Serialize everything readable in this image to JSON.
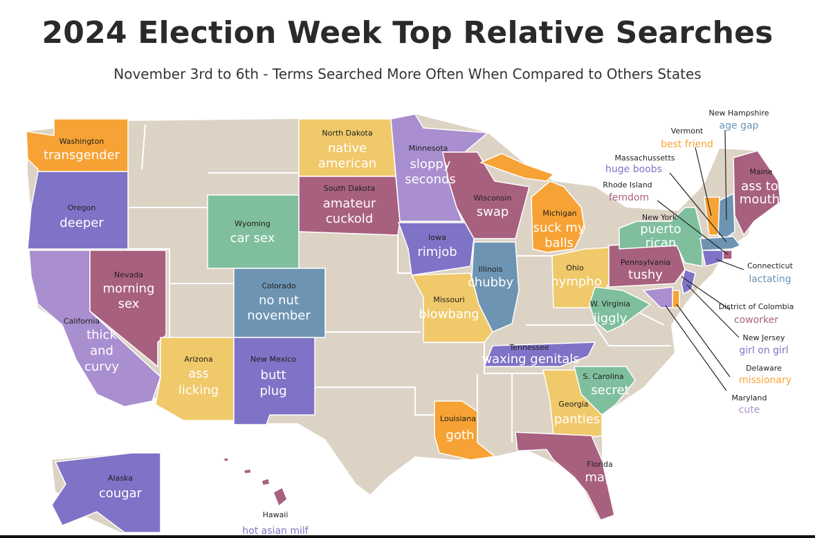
{
  "title": "2024 Election Week Top Relative Searches",
  "subtitle": "November 3rd to 6th - Terms Searched More Often When Compared to Others States",
  "colors": {
    "base": "#ddd3c5",
    "orange": "#f7a234",
    "purple": "#7e73c6",
    "lavender": "#a98ed0",
    "mauve": "#a8607f",
    "green": "#7fbf9e",
    "yellow": "#f0c96a",
    "blue": "#6d94b3"
  },
  "states": {
    "washington": {
      "name": "Washington",
      "term": "transgender"
    },
    "oregon": {
      "name": "Oregon",
      "term": "deeper"
    },
    "california": {
      "name": "California",
      "term": [
        "thick",
        "and",
        "curvy"
      ]
    },
    "nevada": {
      "name": "Nevada",
      "term": [
        "morning",
        "sex"
      ]
    },
    "arizona": {
      "name": "Arizona",
      "term": [
        "ass",
        "licking"
      ]
    },
    "wyoming": {
      "name": "Wyoming",
      "term": "car sex"
    },
    "colorado": {
      "name": "Colorado",
      "term": [
        "no nut",
        "november"
      ]
    },
    "new_mexico": {
      "name": "New Mexico",
      "term": [
        "butt",
        "plug"
      ]
    },
    "north_dakota": {
      "name": "North Dakota",
      "term": [
        "native",
        "american"
      ]
    },
    "south_dakota": {
      "name": "South Dakota",
      "term": [
        "amateur",
        "cuckold"
      ]
    },
    "minnesota": {
      "name": "Minnesota",
      "term": [
        "sloppy",
        "seconds"
      ]
    },
    "iowa": {
      "name": "Iowa",
      "term": "rimjob"
    },
    "wisconsin": {
      "name": "Wisconsin",
      "term": "swap"
    },
    "illinois": {
      "name": "Illinois",
      "term": "chubby"
    },
    "missouri": {
      "name": "Missouri",
      "term": "blowbang"
    },
    "michigan": {
      "name": "Michigan",
      "term": [
        "suck my",
        "balls"
      ]
    },
    "ohio": {
      "name": "Ohio",
      "term": "nympho"
    },
    "tennessee": {
      "name": "Tennessee",
      "term": "waxing genitals"
    },
    "louisiana": {
      "name": "Louisiana",
      "term": "goth"
    },
    "georgia": {
      "name": "Georgia",
      "term": "panties"
    },
    "south_carolina": {
      "name": "S. Carolina",
      "term": "secret"
    },
    "west_virginia": {
      "name": "W. Virginia",
      "term": "jiggly"
    },
    "pennsylvania": {
      "name": "Pennsylvania",
      "term": "tushy"
    },
    "new_york": {
      "name": "New York",
      "term": [
        "puerto",
        "rican"
      ]
    },
    "maine": {
      "name": "Maine",
      "term": [
        "ass to",
        "mouth"
      ]
    },
    "florida": {
      "name": "Florida",
      "term": "maga"
    },
    "alaska": {
      "name": "Alaska",
      "term": "cougar"
    },
    "hawaii": {
      "name": "Hawaii",
      "term": "hot asian milf"
    },
    "new_hampshire": {
      "name": "New Hampshire",
      "term": "age gap"
    },
    "vermont": {
      "name": "Vermont",
      "term": "best friend"
    },
    "massachusetts": {
      "name": "Massachussetts",
      "term": "huge boobs"
    },
    "rhode_island": {
      "name": "Rhode Island",
      "term": "femdom"
    },
    "connecticut": {
      "name": "Connecticut",
      "term": "lactating"
    },
    "district_of_columbia": {
      "name": "District of Colombia",
      "term": "coworker"
    },
    "new_jersey": {
      "name": "New Jersey",
      "term": "girl on girl"
    },
    "delaware": {
      "name": "Delaware",
      "term": "missionary"
    },
    "maryland": {
      "name": "Maryland",
      "term": "cute"
    }
  }
}
